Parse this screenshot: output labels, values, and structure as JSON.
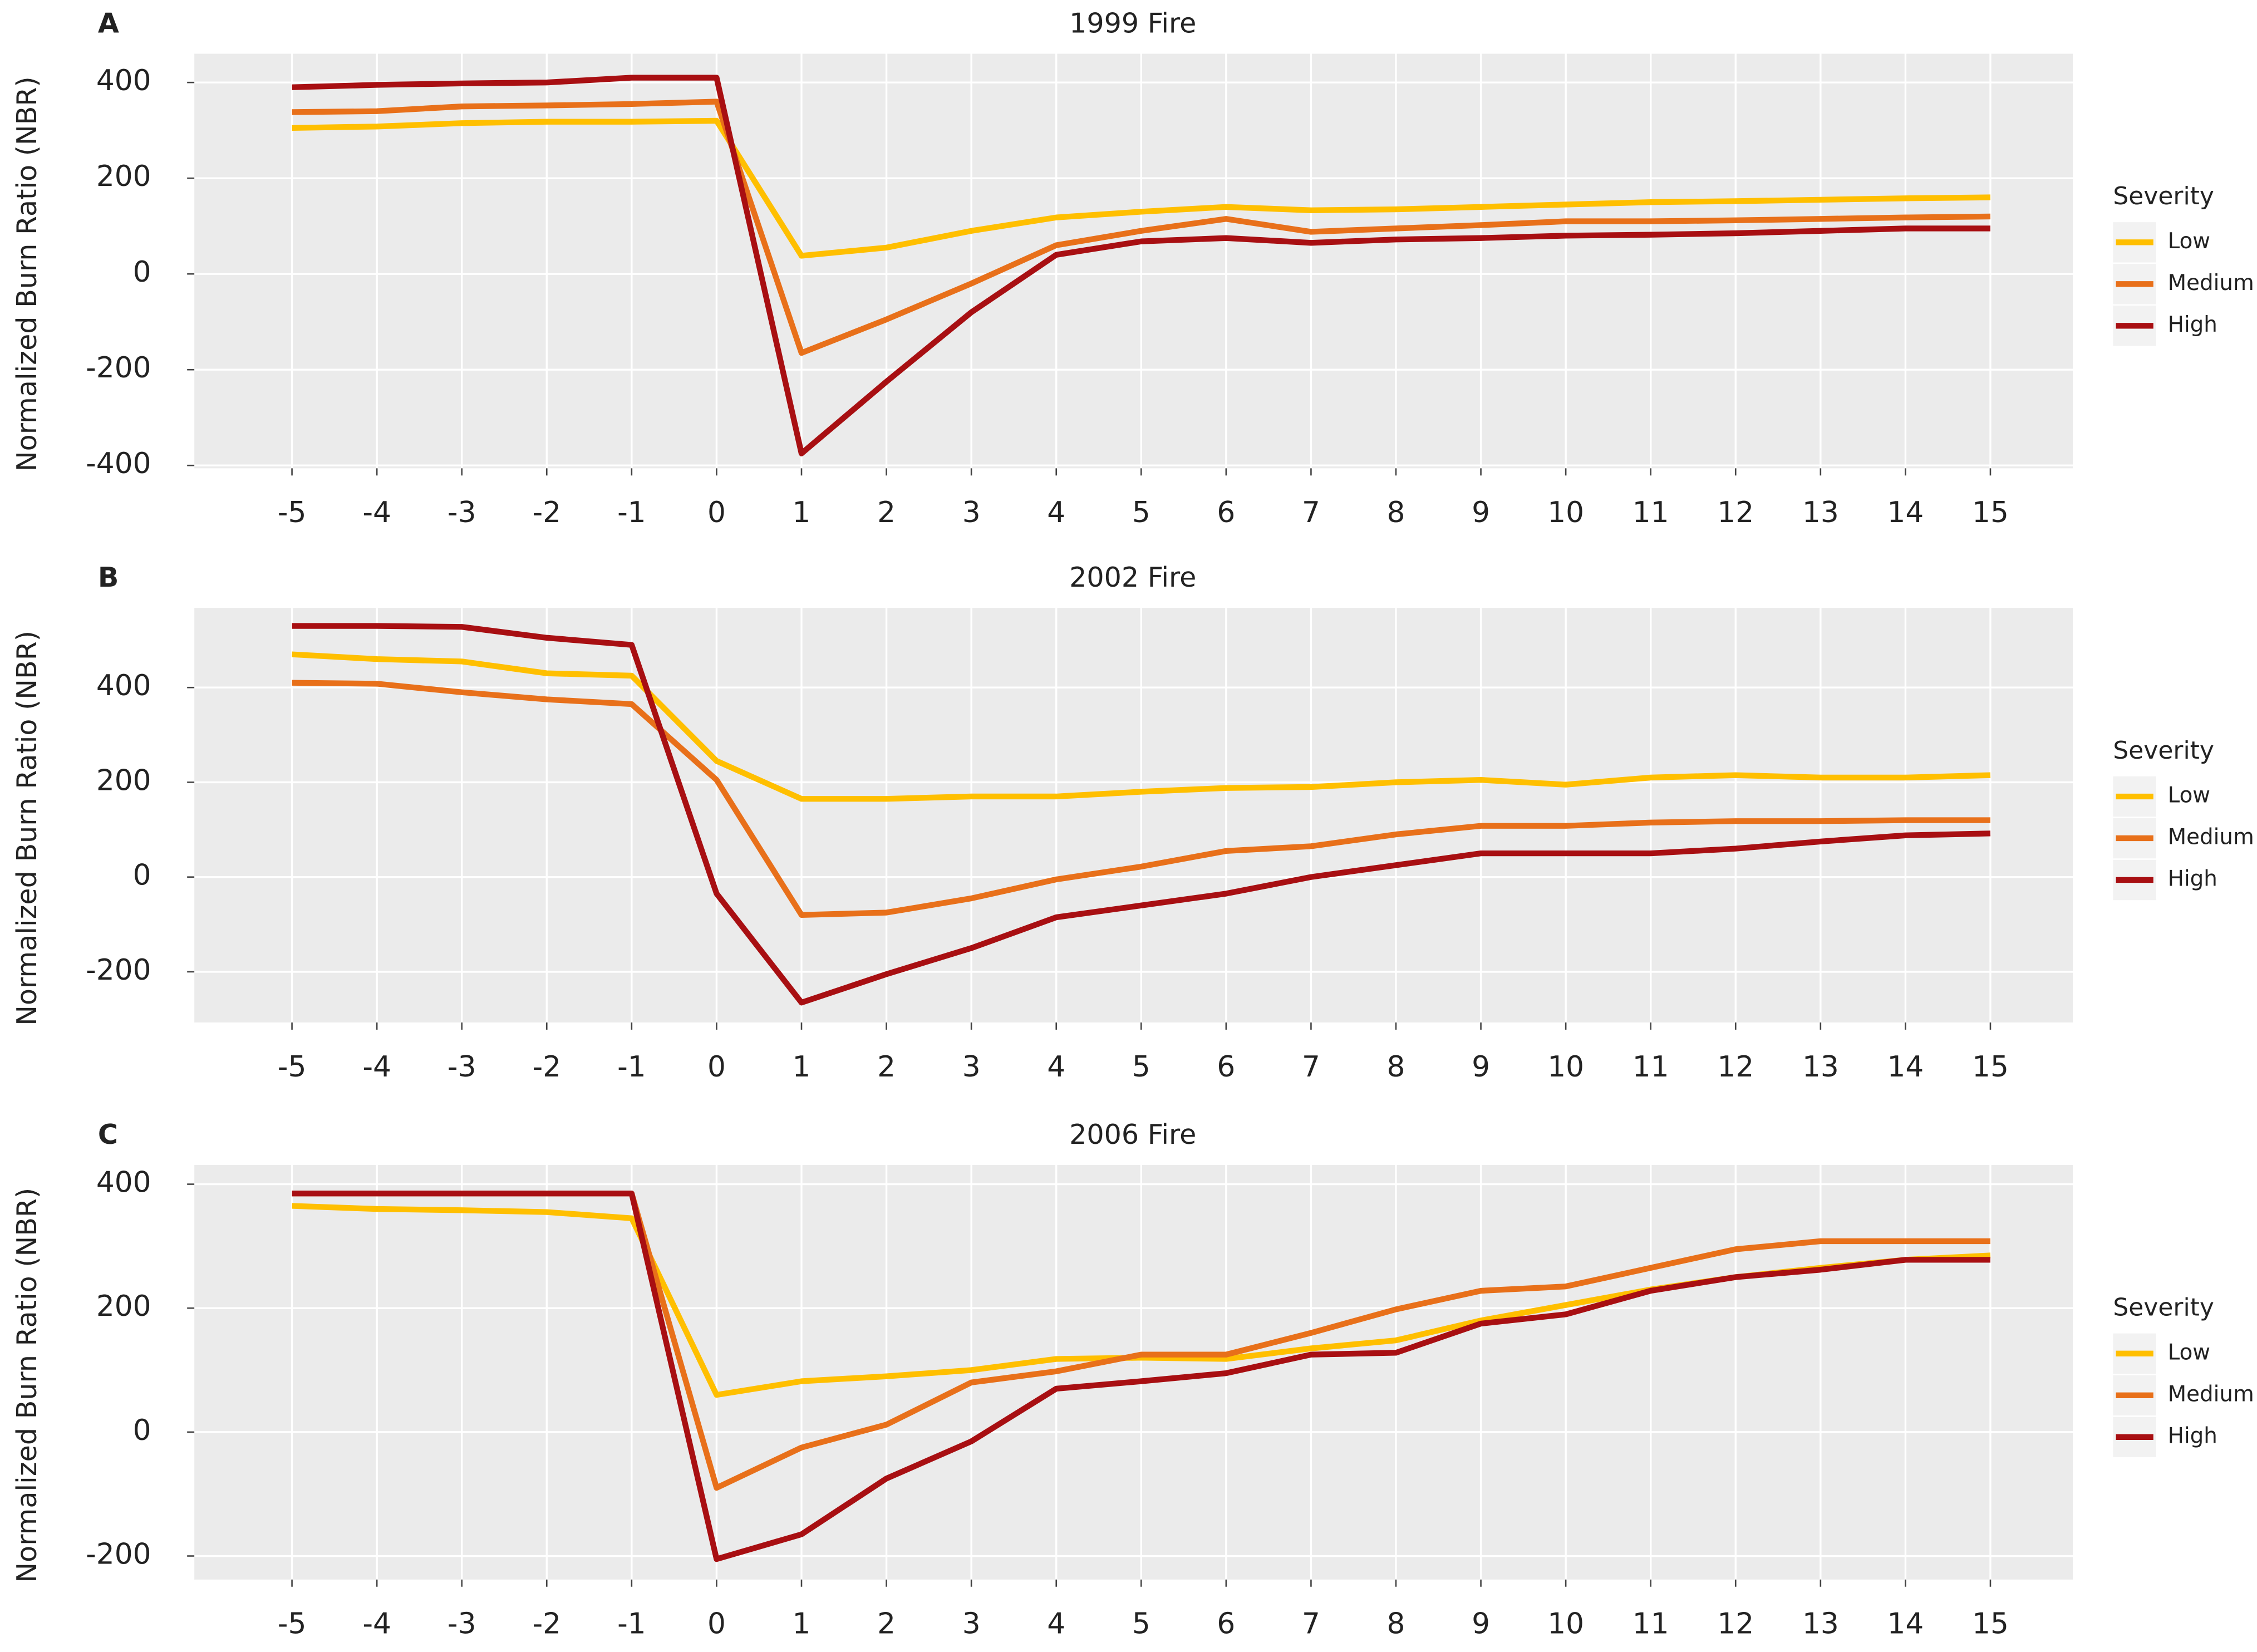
{
  "chart_data": [
    {
      "type": "line",
      "panel_label": "A",
      "title": "1999 Fire",
      "y_label": "Normalized Burn Ratio (NBR)",
      "x": [
        -5,
        -4,
        -3,
        -2,
        -1,
        0,
        1,
        2,
        3,
        4,
        5,
        6,
        7,
        8,
        9,
        10,
        11,
        12,
        13,
        14,
        15
      ],
      "xlim": [
        -6.15,
        15.97
      ],
      "xticks": [
        -5,
        -4,
        -3,
        -2,
        -1,
        0,
        1,
        2,
        3,
        4,
        5,
        6,
        7,
        8,
        9,
        10,
        11,
        12,
        13,
        14,
        15
      ],
      "ylim": [
        -406,
        460
      ],
      "yticks": [
        -400,
        -200,
        0,
        200,
        400
      ],
      "grid": true,
      "legend_title": "Severity",
      "legend_position": "right",
      "series": [
        {
          "name": "Low",
          "color": "#FFBF00",
          "values": [
            305,
            308,
            315,
            318,
            318,
            320,
            38,
            55,
            90,
            118,
            130,
            140,
            133,
            135,
            140,
            145,
            150,
            152,
            155,
            158,
            160
          ]
        },
        {
          "name": "Medium",
          "color": "#E8701A",
          "values": [
            338,
            340,
            350,
            352,
            355,
            360,
            -165,
            -95,
            -20,
            60,
            90,
            115,
            88,
            95,
            102,
            110,
            110,
            112,
            115,
            118,
            120
          ]
        },
        {
          "name": "High",
          "color": "#A80F12",
          "values": [
            390,
            395,
            398,
            400,
            410,
            410,
            -375,
            -225,
            -80,
            40,
            68,
            75,
            65,
            72,
            75,
            80,
            82,
            85,
            90,
            95,
            95
          ]
        }
      ]
    },
    {
      "type": "line",
      "panel_label": "B",
      "title": "2002 Fire",
      "y_label": "Normalized Burn Ratio (NBR)",
      "x": [
        -5,
        -4,
        -3,
        -2,
        -1,
        0,
        1,
        2,
        3,
        4,
        5,
        6,
        7,
        8,
        9,
        10,
        11,
        12,
        13,
        14,
        15
      ],
      "xlim": [
        -6.15,
        15.97
      ],
      "xticks": [
        -5,
        -4,
        -3,
        -2,
        -1,
        0,
        1,
        2,
        3,
        4,
        5,
        6,
        7,
        8,
        9,
        10,
        11,
        12,
        13,
        14,
        15
      ],
      "ylim": [
        -307,
        568
      ],
      "yticks": [
        -200,
        0,
        200,
        400
      ],
      "grid": true,
      "legend_title": "Severity",
      "legend_position": "right",
      "series": [
        {
          "name": "Low",
          "color": "#FFBF00",
          "values": [
            470,
            460,
            455,
            430,
            425,
            245,
            165,
            165,
            170,
            170,
            180,
            188,
            190,
            200,
            205,
            195,
            210,
            215,
            210,
            210,
            215
          ]
        },
        {
          "name": "Medium",
          "color": "#E8701A",
          "values": [
            410,
            408,
            390,
            375,
            365,
            205,
            -80,
            -75,
            -45,
            -5,
            22,
            55,
            65,
            90,
            108,
            108,
            115,
            118,
            118,
            120,
            120
          ]
        },
        {
          "name": "High",
          "color": "#A80F12",
          "values": [
            530,
            530,
            528,
            505,
            490,
            -35,
            -265,
            -205,
            -150,
            -85,
            -60,
            -35,
            0,
            25,
            50,
            50,
            50,
            60,
            75,
            88,
            92
          ]
        }
      ]
    },
    {
      "type": "line",
      "panel_label": "C",
      "title": "2006 Fire",
      "y_label": "Normalized Burn Ratio (NBR)",
      "x": [
        -5,
        -4,
        -3,
        -2,
        -1,
        0,
        1,
        2,
        3,
        4,
        5,
        6,
        7,
        8,
        9,
        10,
        11,
        12,
        13,
        14,
        15
      ],
      "xlim": [
        -6.15,
        15.97
      ],
      "xticks": [
        -5,
        -4,
        -3,
        -2,
        -1,
        0,
        1,
        2,
        3,
        4,
        5,
        6,
        7,
        8,
        9,
        10,
        11,
        12,
        13,
        14,
        15
      ],
      "ylim": [
        -238,
        431
      ],
      "yticks": [
        -200,
        0,
        200,
        400
      ],
      "grid": true,
      "legend_title": "Severity",
      "legend_position": "right",
      "series": [
        {
          "name": "Low",
          "color": "#FFBF00",
          "values": [
            365,
            360,
            358,
            355,
            345,
            60,
            82,
            90,
            100,
            118,
            120,
            118,
            135,
            148,
            180,
            205,
            230,
            250,
            265,
            278,
            285
          ]
        },
        {
          "name": "Medium",
          "color": "#E8701A",
          "values": [
            385,
            385,
            385,
            385,
            385,
            -90,
            -25,
            12,
            80,
            98,
            125,
            125,
            160,
            198,
            228,
            235,
            265,
            295,
            308,
            308,
            308
          ]
        },
        {
          "name": "High",
          "color": "#A80F12",
          "values": [
            385,
            385,
            385,
            385,
            385,
            -205,
            -165,
            -75,
            -15,
            70,
            82,
            95,
            125,
            128,
            175,
            190,
            228,
            250,
            262,
            278,
            278
          ]
        }
      ]
    }
  ]
}
